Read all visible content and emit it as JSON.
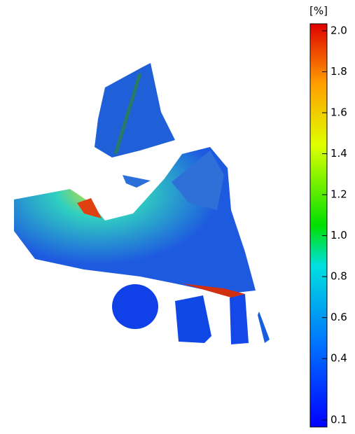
{
  "chart_data": {
    "type": "colorbar",
    "title": "[%]",
    "ylim": [
      0.1,
      2.0
    ],
    "yticks": [
      0.1,
      0.4,
      0.6,
      0.8,
      {
        "value": 1,
        "label": "1.0"
      },
      1.2,
      1.4,
      1.6,
      1.8,
      {
        "value": 2,
        "label": "2.0"
      }
    ]
  }
}
